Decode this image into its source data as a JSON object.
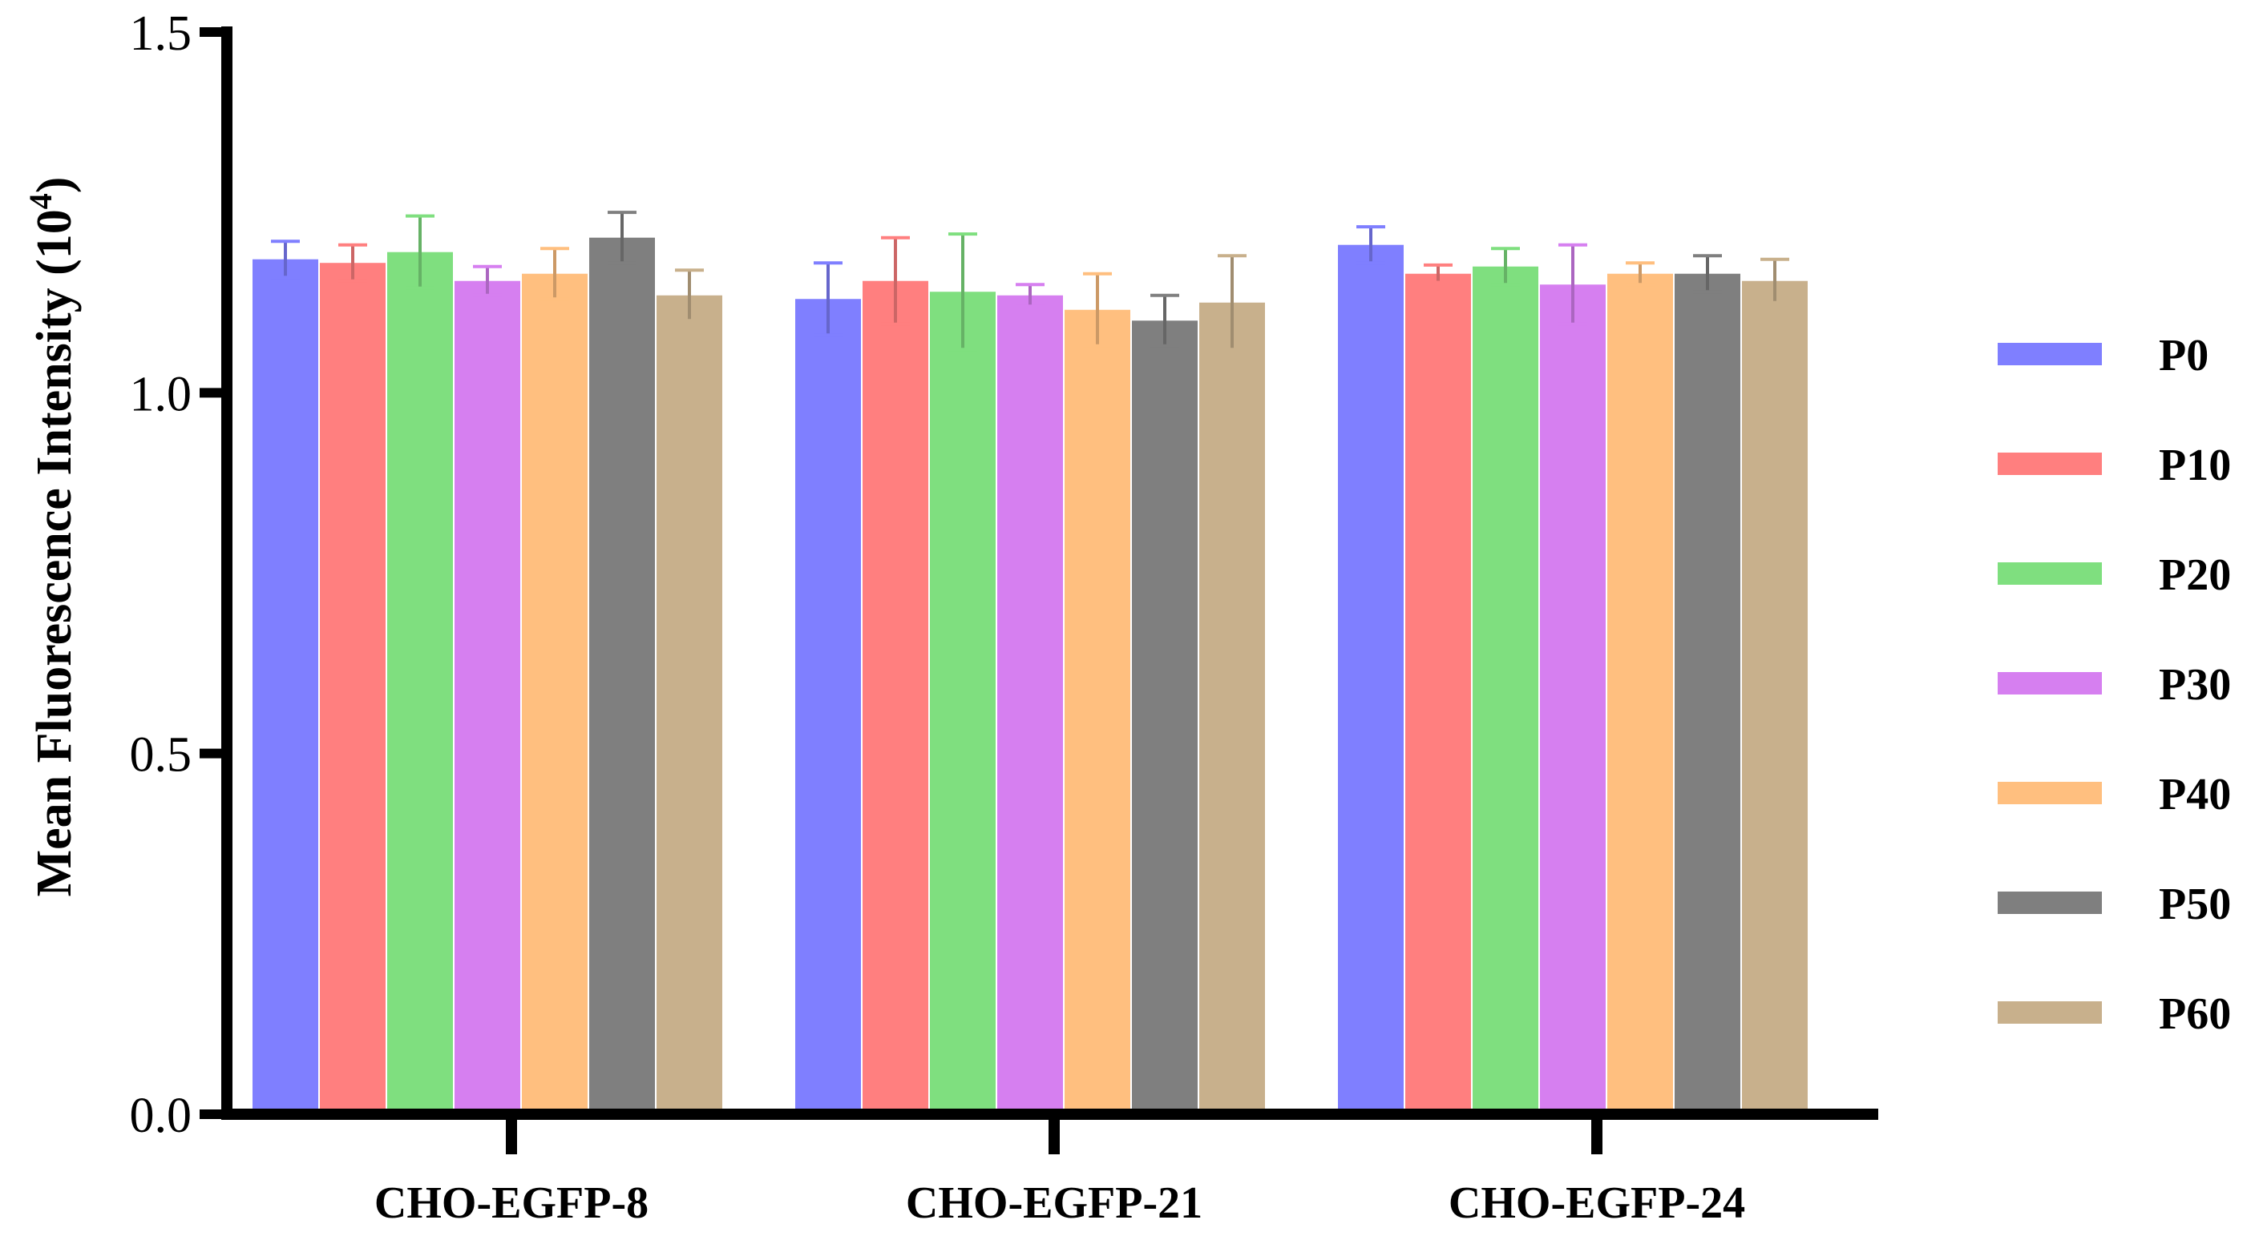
{
  "chart_data": {
    "type": "bar",
    "title": "",
    "xlabel": "",
    "ylabel": "Mean Fluorescence Intensity (10",
    "ylabel_superscript": "4",
    "ylabel_suffix": ")",
    "ylim": [
      0.0,
      1.5
    ],
    "yticks": [
      0.0,
      0.5,
      1.0,
      1.5
    ],
    "ytick_labels": [
      "0.0",
      "0.5",
      "1.0",
      "1.5"
    ],
    "categories": [
      "CHO-EGFP-8",
      "CHO-EGFP-21",
      "CHO-EGFP-24"
    ],
    "legend_position": "right",
    "series": [
      {
        "name": "P0",
        "color": "#7f7fff",
        "values": [
          1.185,
          1.13,
          1.205
        ],
        "errors": [
          0.025,
          0.05,
          0.025
        ]
      },
      {
        "name": "P10",
        "color": "#ff7f7f",
        "values": [
          1.18,
          1.155,
          1.165
        ],
        "errors": [
          0.025,
          0.06,
          0.012
        ]
      },
      {
        "name": "P20",
        "color": "#7fdf7f",
        "values": [
          1.195,
          1.14,
          1.175
        ],
        "errors": [
          0.05,
          0.08,
          0.025
        ]
      },
      {
        "name": "P30",
        "color": "#d67ff0",
        "values": [
          1.155,
          1.135,
          1.15
        ],
        "errors": [
          0.02,
          0.015,
          0.055
        ]
      },
      {
        "name": "P40",
        "color": "#ffbf7f",
        "values": [
          1.165,
          1.115,
          1.165
        ],
        "errors": [
          0.035,
          0.05,
          0.015
        ]
      },
      {
        "name": "P50",
        "color": "#7f7f7f",
        "values": [
          1.215,
          1.1,
          1.165
        ],
        "errors": [
          0.035,
          0.035,
          0.025
        ]
      },
      {
        "name": "P60",
        "color": "#c8b08c",
        "values": [
          1.135,
          1.125,
          1.155
        ],
        "errors": [
          0.035,
          0.065,
          0.03
        ]
      }
    ]
  }
}
